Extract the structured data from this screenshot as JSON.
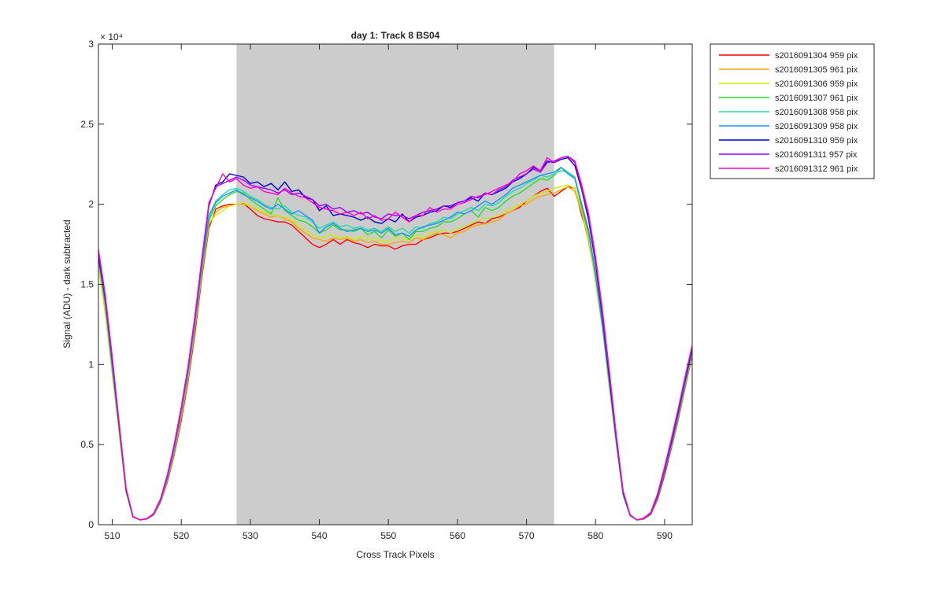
{
  "chart_data": {
    "type": "line",
    "title": "day 1: Track 8  BS04",
    "xlabel": "Cross Track Pixels",
    "ylabel": "Signal (ADU) - dark subtracted",
    "xlim": [
      508,
      594
    ],
    "ylim": [
      0,
      30000
    ],
    "y_exponent_label": "× 10⁴",
    "xticks": [
      510,
      520,
      530,
      540,
      550,
      560,
      570,
      580,
      590
    ],
    "yticks": [
      0,
      5000,
      10000,
      15000,
      20000,
      25000,
      30000
    ],
    "ytick_labels": [
      "0",
      "0.5",
      "1",
      "1.5",
      "2",
      "2.5",
      "3"
    ],
    "grid": false,
    "legend_position": "outside-right",
    "shaded_region": {
      "x": [
        528,
        574
      ],
      "color": "#cccccc"
    },
    "x": [
      508,
      509,
      510,
      511,
      512,
      513,
      514,
      515,
      516,
      517,
      518,
      519,
      520,
      521,
      522,
      523,
      524,
      525,
      526,
      527,
      528,
      529,
      530,
      531,
      532,
      533,
      534,
      535,
      536,
      537,
      538,
      539,
      540,
      541,
      542,
      543,
      544,
      545,
      546,
      547,
      548,
      549,
      550,
      551,
      552,
      553,
      554,
      555,
      556,
      557,
      558,
      559,
      560,
      561,
      562,
      563,
      564,
      565,
      566,
      567,
      568,
      569,
      570,
      571,
      572,
      573,
      574,
      575,
      576,
      577,
      578,
      579,
      580,
      581,
      582,
      583,
      584,
      585,
      586,
      587,
      588,
      589,
      590,
      591,
      592,
      593,
      594
    ],
    "series": [
      {
        "name": "s2016091304 959 pix",
        "color": "#ff0000",
        "values": [
          16400,
          13600,
          10000,
          6000,
          2200,
          500,
          300,
          350,
          600,
          1400,
          2700,
          4400,
          6500,
          9000,
          12000,
          15500,
          18500,
          19700,
          19900,
          20000,
          20000,
          20050,
          19700,
          19300,
          19100,
          19000,
          18900,
          18900,
          18700,
          18300,
          17900,
          17500,
          17300,
          17500,
          17800,
          17500,
          17800,
          17600,
          17500,
          17300,
          17500,
          17400,
          17400,
          17200,
          17400,
          17500,
          17500,
          17800,
          17900,
          18100,
          18200,
          18200,
          18300,
          18500,
          18700,
          18900,
          18800,
          19100,
          19200,
          19400,
          19600,
          19800,
          20200,
          20500,
          20800,
          21000,
          20500,
          20800,
          21100,
          21000,
          19300,
          18000,
          15700,
          12600,
          9000,
          5400,
          2000,
          600,
          300,
          350,
          650,
          1600,
          3100,
          4800,
          6600,
          8600,
          10600
        ]
      },
      {
        "name": "s2016091305 961 pix",
        "color": "#ffa500",
        "values": [
          16200,
          13300,
          9600,
          5800,
          2100,
          480,
          300,
          350,
          620,
          1450,
          2800,
          4500,
          6700,
          9200,
          12300,
          15700,
          18700,
          19500,
          19800,
          19900,
          20000,
          20000,
          19900,
          19600,
          19400,
          19200,
          19300,
          19100,
          18900,
          18500,
          18200,
          17900,
          17800,
          17700,
          17900,
          17800,
          17900,
          17700,
          17800,
          17600,
          17700,
          17500,
          17500,
          17600,
          17700,
          17600,
          17900,
          17800,
          18000,
          18200,
          18100,
          17900,
          18200,
          18300,
          18600,
          18700,
          18800,
          18900,
          19000,
          19400,
          19600,
          19900,
          20000,
          20300,
          20500,
          20600,
          20700,
          20900,
          21100,
          20800,
          19500,
          17600,
          15300,
          12400,
          8800,
          5200,
          1900,
          580,
          300,
          360,
          700,
          1700,
          3300,
          4900,
          6700,
          8700,
          10700
        ]
      },
      {
        "name": "s2016091306 959 pix",
        "color": "#c6f000",
        "values": [
          16100,
          13100,
          9400,
          5700,
          2000,
          470,
          300,
          360,
          640,
          1500,
          2900,
          4700,
          6900,
          9400,
          12500,
          15900,
          18900,
          19300,
          19600,
          19900,
          20000,
          20100,
          19900,
          19700,
          19500,
          19400,
          19300,
          19200,
          19000,
          18700,
          18400,
          18100,
          17900,
          18000,
          18100,
          17900,
          18000,
          17800,
          18000,
          17800,
          17900,
          17700,
          17700,
          17900,
          17900,
          17800,
          18100,
          17900,
          18200,
          18300,
          18400,
          18200,
          18500,
          18600,
          18800,
          19000,
          19100,
          19200,
          19300,
          19600,
          19800,
          20000,
          20200,
          20500,
          20700,
          20800,
          21000,
          21100,
          21200,
          21000,
          19700,
          17900,
          15100,
          12200,
          8500,
          5000,
          1800,
          560,
          300,
          380,
          720,
          1800,
          3400,
          5000,
          6900,
          8800,
          10800
        ]
      },
      {
        "name": "s2016091307 961 pix",
        "color": "#22e022",
        "values": [
          16600,
          13700,
          9800,
          6000,
          2100,
          490,
          300,
          370,
          650,
          1500,
          2900,
          4700,
          7000,
          9500,
          12600,
          16000,
          19000,
          19900,
          20300,
          20600,
          20800,
          20700,
          20300,
          20000,
          19700,
          19400,
          20400,
          19600,
          19300,
          19000,
          18900,
          18600,
          18200,
          18400,
          18700,
          18400,
          18400,
          18300,
          18500,
          18100,
          18300,
          17900,
          18400,
          18000,
          18200,
          17800,
          18300,
          18300,
          18500,
          18600,
          18900,
          18900,
          19100,
          19400,
          19600,
          19200,
          19800,
          19600,
          19800,
          20200,
          20500,
          20700,
          21000,
          21300,
          21600,
          21500,
          21800,
          22300,
          22000,
          21600,
          19800,
          18200,
          15500,
          12400,
          8800,
          5100,
          1850,
          570,
          300,
          380,
          700,
          1750,
          3300,
          5000,
          6800,
          8800,
          10800
        ]
      },
      {
        "name": "s2016091308 958 pix",
        "color": "#20e0a0",
        "values": [
          16900,
          13900,
          10000,
          6100,
          2150,
          500,
          300,
          370,
          660,
          1550,
          3000,
          4800,
          7100,
          9700,
          12800,
          16300,
          19300,
          20200,
          20600,
          20900,
          21000,
          20800,
          20500,
          20300,
          20000,
          19800,
          19700,
          19900,
          19500,
          19300,
          19200,
          18900,
          18500,
          18700,
          18900,
          18600,
          18700,
          18500,
          18600,
          18400,
          18500,
          18300,
          18600,
          18300,
          18500,
          18200,
          18600,
          18500,
          18800,
          18900,
          19200,
          19100,
          19400,
          19600,
          19800,
          19600,
          20000,
          19900,
          20100,
          20500,
          20800,
          21000,
          21300,
          21500,
          21800,
          21700,
          21900,
          22100,
          22000,
          21700,
          20000,
          18400,
          15700,
          12600,
          8900,
          5200,
          1900,
          580,
          300,
          390,
          720,
          1800,
          3400,
          5100,
          7000,
          9000,
          11000
        ]
      },
      {
        "name": "s2016091309 958 pix",
        "color": "#1e90ff",
        "values": [
          16700,
          13800,
          9900,
          6050,
          2120,
          495,
          300,
          370,
          655,
          1530,
          2950,
          4750,
          7050,
          9600,
          12700,
          16200,
          19200,
          20100,
          20500,
          20700,
          20900,
          20600,
          20400,
          20200,
          19900,
          19700,
          20000,
          19700,
          19400,
          19600,
          19300,
          19000,
          18200,
          18600,
          18800,
          18500,
          18300,
          18400,
          18500,
          18300,
          18400,
          18200,
          18500,
          18100,
          18200,
          18000,
          18400,
          18600,
          18700,
          18800,
          19000,
          19200,
          19500,
          19400,
          19600,
          19900,
          20200,
          20000,
          20300,
          20600,
          21000,
          21200,
          21400,
          21600,
          21800,
          21900,
          22000,
          22300,
          21900,
          21600,
          20000,
          18300,
          15600,
          12500,
          8900,
          5200,
          1900,
          570,
          300,
          380,
          710,
          1780,
          3350,
          5050,
          6950,
          8950,
          10900
        ]
      },
      {
        "name": "s2016091310 959 pix",
        "color": "#0000cd",
        "values": [
          16800,
          14100,
          10300,
          6200,
          2200,
          500,
          300,
          380,
          680,
          1600,
          3100,
          5000,
          7300,
          9900,
          13000,
          16600,
          19900,
          21200,
          21400,
          21900,
          21800,
          21700,
          21300,
          21400,
          21100,
          21300,
          20900,
          21400,
          20800,
          20900,
          20400,
          20300,
          19600,
          19900,
          19300,
          19400,
          19300,
          19200,
          19000,
          19200,
          18900,
          18800,
          19100,
          18900,
          19400,
          18900,
          19200,
          19300,
          19500,
          19600,
          19900,
          19800,
          20100,
          20200,
          20400,
          20200,
          20700,
          20600,
          20800,
          21000,
          21400,
          21600,
          21900,
          22300,
          22100,
          22700,
          22600,
          22800,
          22900,
          22400,
          20900,
          19000,
          16300,
          13000,
          9200,
          5400,
          2000,
          600,
          300,
          400,
          740,
          1850,
          3500,
          5200,
          7100,
          9100,
          11000
        ]
      },
      {
        "name": "s2016091311 957 pix",
        "color": "#9900ff",
        "values": [
          17000,
          14200,
          10400,
          6300,
          2250,
          510,
          300,
          380,
          690,
          1600,
          3100,
          5000,
          7300,
          9900,
          13000,
          16600,
          20000,
          21100,
          21300,
          21500,
          21700,
          21500,
          21200,
          21100,
          21000,
          20900,
          20700,
          20900,
          20600,
          20700,
          20500,
          20300,
          19900,
          20000,
          19700,
          19800,
          19500,
          19600,
          19400,
          19500,
          19200,
          19100,
          19400,
          19300,
          19300,
          19100,
          19300,
          19500,
          19600,
          19700,
          19900,
          19900,
          20100,
          20200,
          20500,
          20400,
          20700,
          20600,
          20900,
          21100,
          21500,
          21700,
          21900,
          22200,
          22000,
          22600,
          22700,
          22900,
          23000,
          22600,
          21000,
          19200,
          16500,
          13200,
          9400,
          5500,
          2050,
          610,
          300,
          400,
          750,
          1900,
          3550,
          5300,
          7200,
          9200,
          11100
        ]
      },
      {
        "name": "s2016091312 961 pix",
        "color": "#ff00cc",
        "values": [
          17200,
          14300,
          10500,
          6350,
          2280,
          520,
          300,
          380,
          700,
          1620,
          3150,
          5050,
          7350,
          9950,
          13100,
          16700,
          20100,
          21000,
          21900,
          21400,
          21600,
          21200,
          21000,
          21100,
          20800,
          20700,
          20600,
          21000,
          20700,
          20500,
          20400,
          20100,
          19800,
          19700,
          19600,
          19400,
          19500,
          19300,
          19500,
          19100,
          19300,
          19000,
          19100,
          19500,
          19200,
          18900,
          19300,
          19300,
          19800,
          19500,
          19700,
          19700,
          20000,
          20100,
          20300,
          20500,
          20600,
          20800,
          21000,
          21200,
          21400,
          21900,
          22100,
          22400,
          22100,
          22900,
          22600,
          22900,
          23000,
          22700,
          21200,
          19400,
          16700,
          13400,
          9600,
          5600,
          2100,
          620,
          300,
          410,
          770,
          1950,
          3600,
          5400,
          7300,
          9300,
          11200
        ]
      }
    ]
  }
}
